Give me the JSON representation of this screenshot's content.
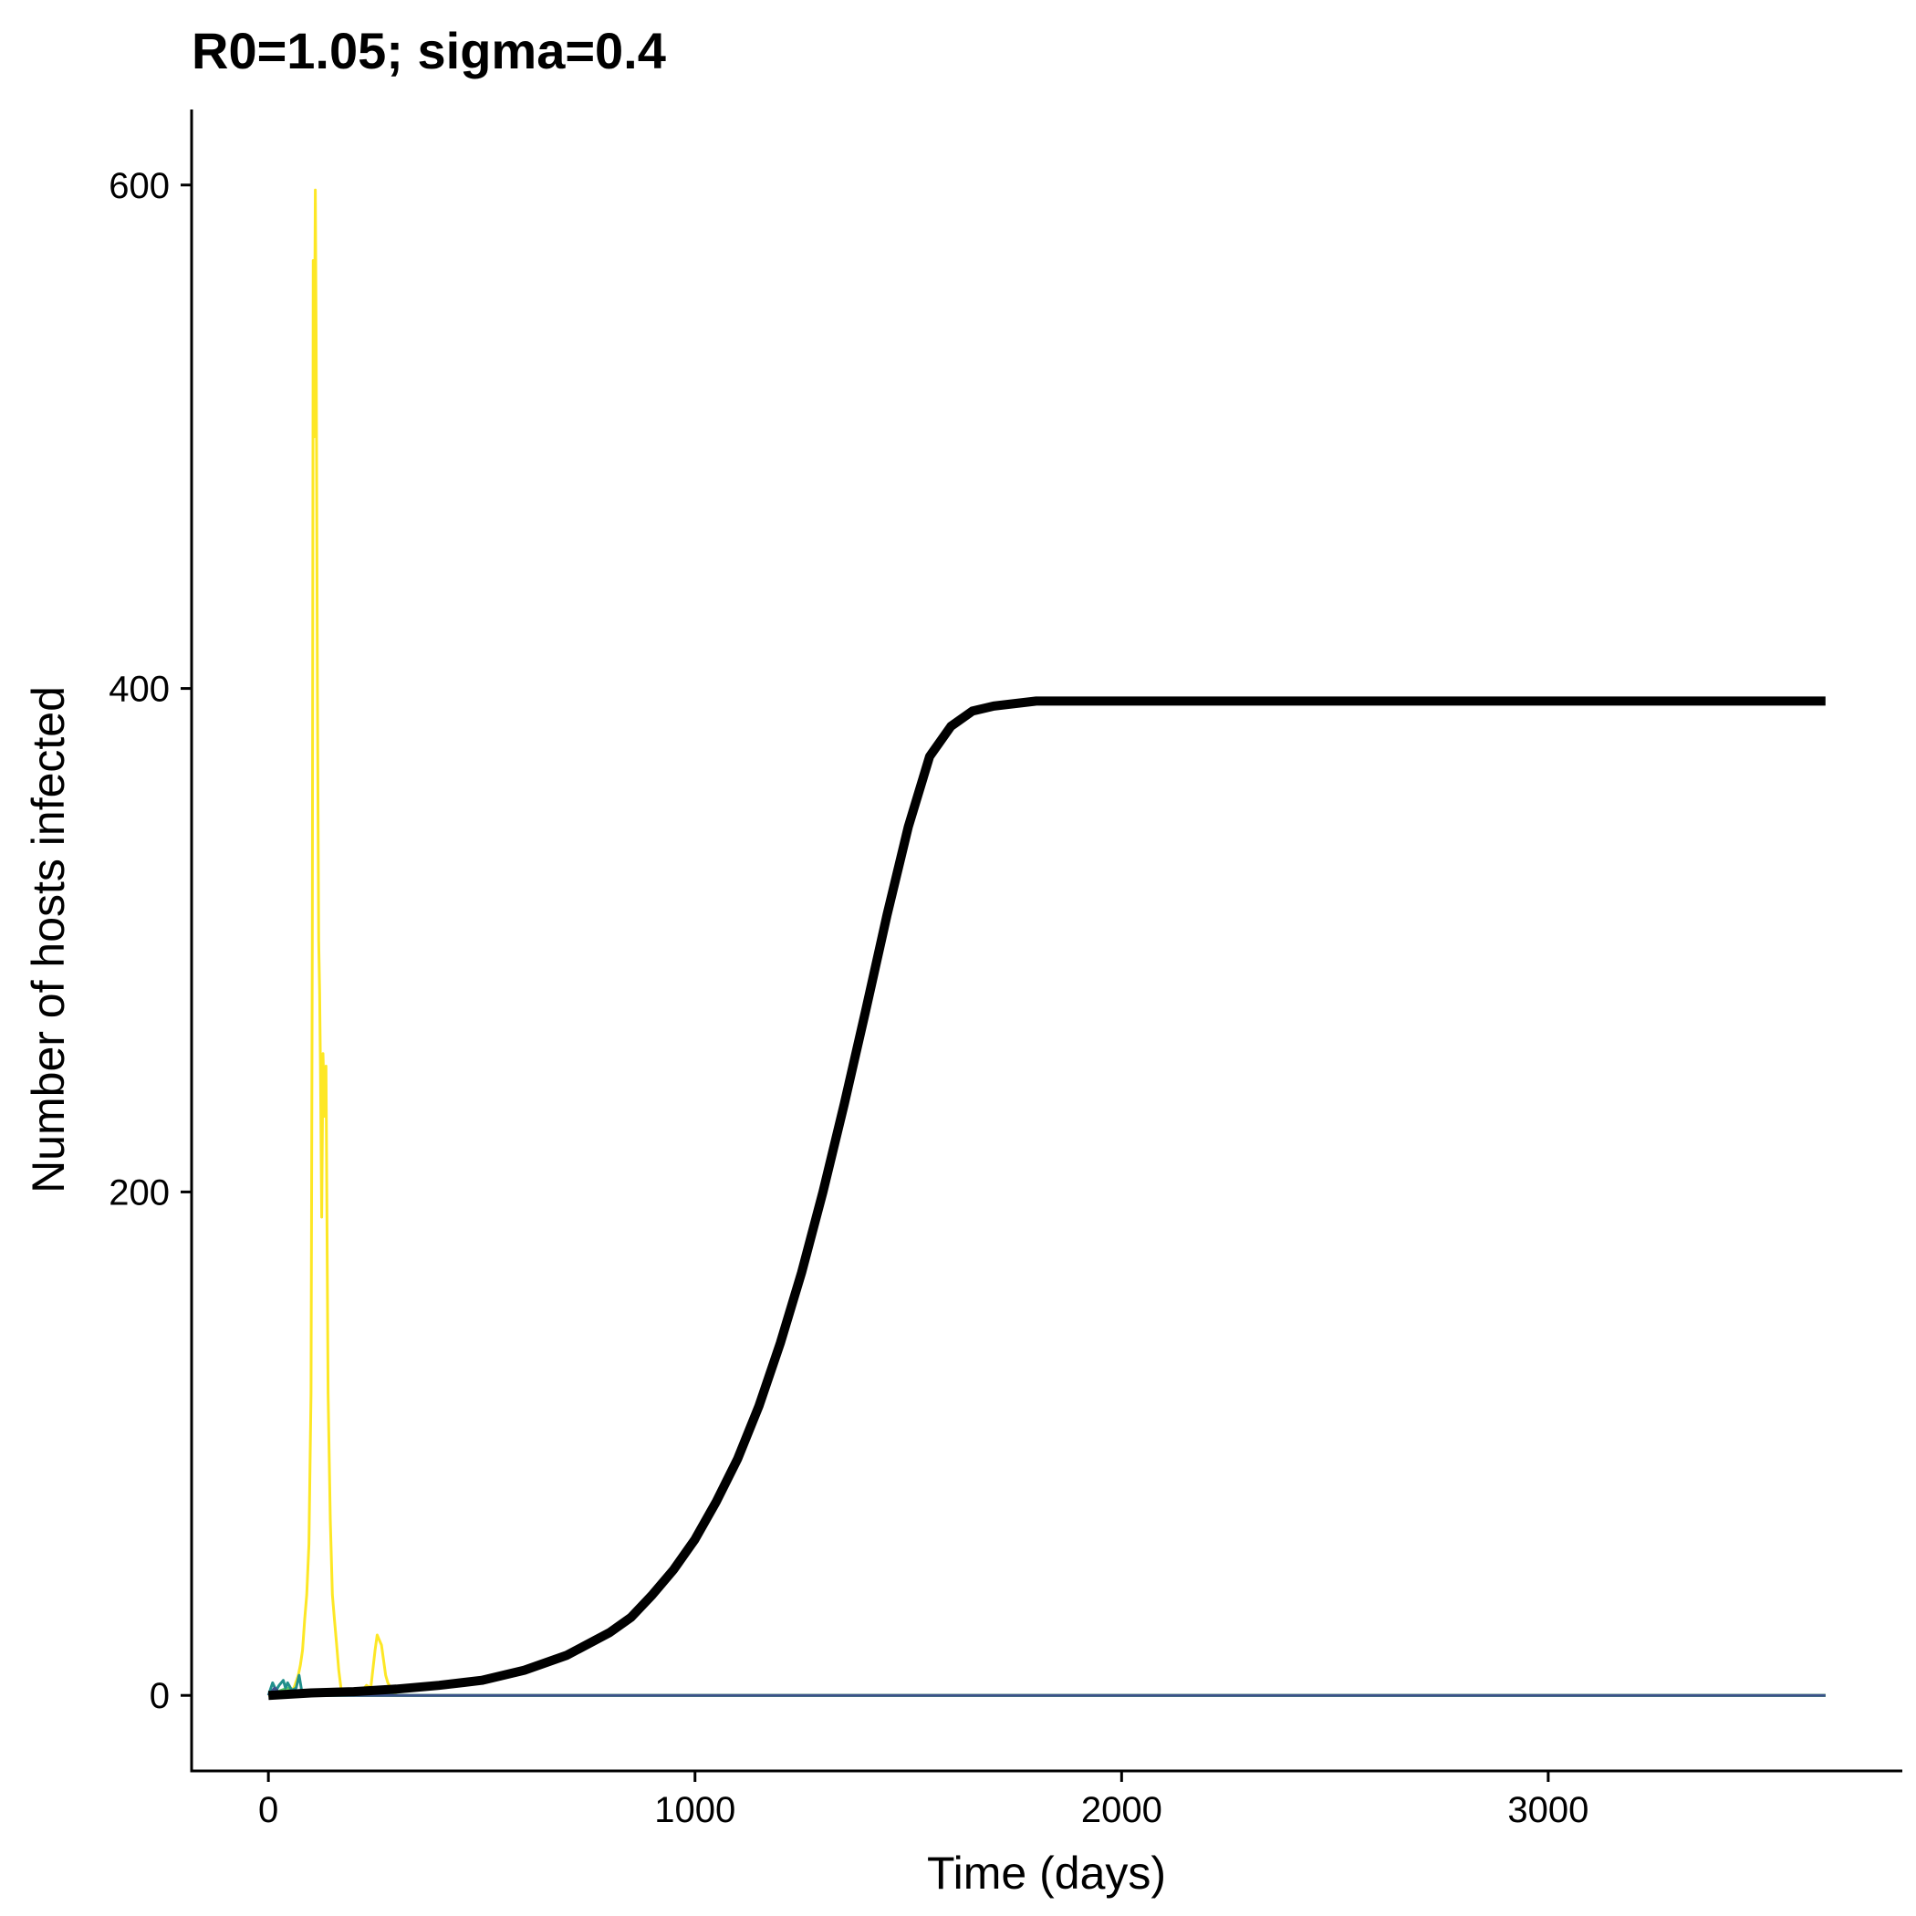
{
  "chart_data": {
    "type": "line",
    "title": "R0=1.05; sigma=0.4",
    "xlabel": "Time (days)",
    "ylabel": "Number of hosts infected",
    "xlim": [
      -180,
      3830
    ],
    "ylim": [
      -30,
      630
    ],
    "x_ticks": [
      0,
      1000,
      2000,
      3000
    ],
    "y_ticks": [
      0,
      200,
      400,
      600
    ],
    "grid": false,
    "legend": "none",
    "series": [
      {
        "color": "#FDE725",
        "width": 3,
        "points": [
          [
            0,
            0
          ],
          [
            30,
            0
          ],
          [
            50,
            2
          ],
          [
            60,
            3
          ],
          [
            70,
            8
          ],
          [
            75,
            12
          ],
          [
            80,
            18
          ],
          [
            85,
            30
          ],
          [
            90,
            40
          ],
          [
            95,
            60
          ],
          [
            100,
            120
          ],
          [
            103,
            300
          ],
          [
            105,
            570
          ],
          [
            107,
            500
          ],
          [
            110,
            598
          ],
          [
            112,
            540
          ],
          [
            115,
            400
          ],
          [
            118,
            300
          ],
          [
            120,
            280
          ],
          [
            122,
            250
          ],
          [
            125,
            190
          ],
          [
            128,
            255
          ],
          [
            132,
            230
          ],
          [
            135,
            250
          ],
          [
            138,
            170
          ],
          [
            140,
            120
          ],
          [
            145,
            70
          ],
          [
            150,
            40
          ],
          [
            155,
            30
          ],
          [
            160,
            20
          ],
          [
            165,
            10
          ],
          [
            170,
            3
          ],
          [
            180,
            1
          ],
          [
            200,
            0
          ],
          [
            220,
            2
          ],
          [
            230,
            4
          ],
          [
            240,
            3
          ],
          [
            250,
            18
          ],
          [
            255,
            24
          ],
          [
            260,
            22
          ],
          [
            265,
            20
          ],
          [
            270,
            14
          ],
          [
            275,
            8
          ],
          [
            280,
            5
          ],
          [
            290,
            2
          ],
          [
            300,
            0
          ],
          [
            3650,
            0
          ]
        ]
      },
      {
        "color": "#E2E418",
        "width": 3,
        "points": [
          [
            0,
            0
          ],
          [
            3650,
            0
          ]
        ]
      },
      {
        "color": "#5DC863",
        "width": 3,
        "points": [
          [
            0,
            0
          ],
          [
            30,
            2
          ],
          [
            45,
            3
          ],
          [
            60,
            1
          ],
          [
            80,
            0
          ],
          [
            3650,
            0
          ]
        ]
      },
      {
        "color": "#21908C",
        "width": 3,
        "points": [
          [
            0,
            0
          ],
          [
            10,
            5
          ],
          [
            18,
            2
          ],
          [
            25,
            4
          ],
          [
            35,
            6
          ],
          [
            40,
            3
          ],
          [
            45,
            5
          ],
          [
            55,
            2
          ],
          [
            65,
            3
          ],
          [
            72,
            8
          ],
          [
            78,
            2
          ],
          [
            85,
            0
          ],
          [
            3650,
            0
          ]
        ]
      },
      {
        "color": "#3B528B",
        "width": 3,
        "points": [
          [
            0,
            0
          ],
          [
            15,
            3
          ],
          [
            25,
            1
          ],
          [
            40,
            0
          ],
          [
            3650,
            0
          ]
        ]
      },
      {
        "color": "#000000",
        "width": 10,
        "points": [
          [
            0,
            0
          ],
          [
            100,
            1
          ],
          [
            200,
            1.5
          ],
          [
            300,
            2.5
          ],
          [
            400,
            4
          ],
          [
            500,
            6
          ],
          [
            600,
            10
          ],
          [
            700,
            16
          ],
          [
            800,
            25
          ],
          [
            850,
            31
          ],
          [
            900,
            40
          ],
          [
            950,
            50
          ],
          [
            1000,
            62
          ],
          [
            1050,
            77
          ],
          [
            1100,
            94
          ],
          [
            1150,
            115
          ],
          [
            1200,
            140
          ],
          [
            1250,
            168
          ],
          [
            1300,
            200
          ],
          [
            1350,
            235
          ],
          [
            1400,
            272
          ],
          [
            1450,
            310
          ],
          [
            1500,
            345
          ],
          [
            1550,
            373
          ],
          [
            1600,
            385
          ],
          [
            1650,
            391
          ],
          [
            1700,
            393
          ],
          [
            1800,
            395
          ],
          [
            1900,
            395
          ],
          [
            2000,
            395
          ],
          [
            2200,
            395
          ],
          [
            2400,
            395
          ],
          [
            2700,
            395
          ],
          [
            3000,
            395
          ],
          [
            3300,
            395
          ],
          [
            3650,
            395
          ]
        ]
      }
    ]
  }
}
